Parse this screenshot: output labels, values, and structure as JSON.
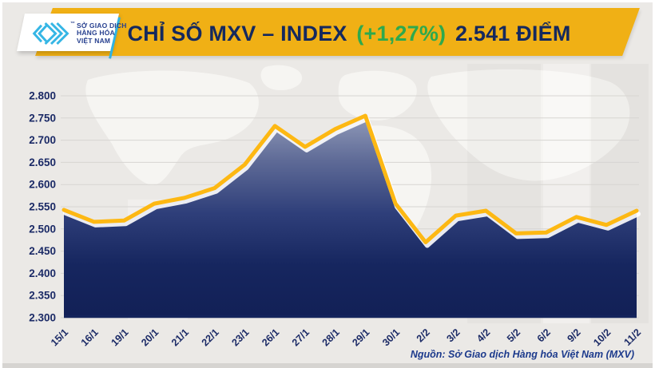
{
  "header": {
    "logo": {
      "line1": "SỞ GIAO DỊCH",
      "line2": "HÀNG HÓA",
      "line3": "VIỆT NAM",
      "trademark": "™"
    },
    "title_prefix": "CHỈ SỐ MXV – INDEX",
    "title_change": "(+1,27%)",
    "title_suffix": "2.541 ĐIỂM"
  },
  "source_note": "Nguồn: Sở Giao dịch Hàng hóa Việt Nam (MXV)",
  "colors": {
    "banner_gold": "#f0b015",
    "line_gold": "#fdb813",
    "navy_text": "#1b2a66",
    "title_navy": "#15295e",
    "change_green": "#2ea94d",
    "logo_cyan": "#2fb3e3",
    "background_gray": "#ebe9e6",
    "gridline_gray": "#d7d5d2"
  },
  "chart_data": {
    "type": "area",
    "title": "CHỈ SỐ MXV – INDEX (+1,27%) 2.541 ĐIỂM",
    "xlabel": "",
    "ylabel": "",
    "legend": "none",
    "grid": "horizontal",
    "categories": [
      "15/1",
      "16/1",
      "19/1",
      "20/1",
      "21/1",
      "22/1",
      "23/1",
      "26/1",
      "27/1",
      "28/1",
      "29/1",
      "30/1",
      "2/2",
      "3/2",
      "4/2",
      "5/2",
      "6/2",
      "9/2",
      "10/2",
      "11/2"
    ],
    "values": [
      2543,
      2516,
      2519,
      2557,
      2570,
      2592,
      2645,
      2732,
      2685,
      2725,
      2755,
      2557,
      2470,
      2530,
      2541,
      2490,
      2492,
      2527,
      2509,
      2541
    ],
    "ylim": [
      2300,
      2800
    ],
    "y_ticks": [
      {
        "value": 2800,
        "label": "2.800"
      },
      {
        "value": 2750,
        "label": "2.750"
      },
      {
        "value": 2700,
        "label": "2.700"
      },
      {
        "value": 2650,
        "label": "2.650"
      },
      {
        "value": 2600,
        "label": "2.600"
      },
      {
        "value": 2550,
        "label": "2.550"
      },
      {
        "value": 2500,
        "label": "2.500"
      },
      {
        "value": 2450,
        "label": "2.450"
      },
      {
        "value": 2400,
        "label": "2.400"
      },
      {
        "value": 2350,
        "label": "2.350"
      },
      {
        "value": 2300,
        "label": "2.300"
      }
    ],
    "line_color": "#fdb813",
    "area_gradient": [
      "#9aa3bf",
      "#5f6b97",
      "#2f3f7a",
      "#16265f",
      "#122056"
    ]
  }
}
